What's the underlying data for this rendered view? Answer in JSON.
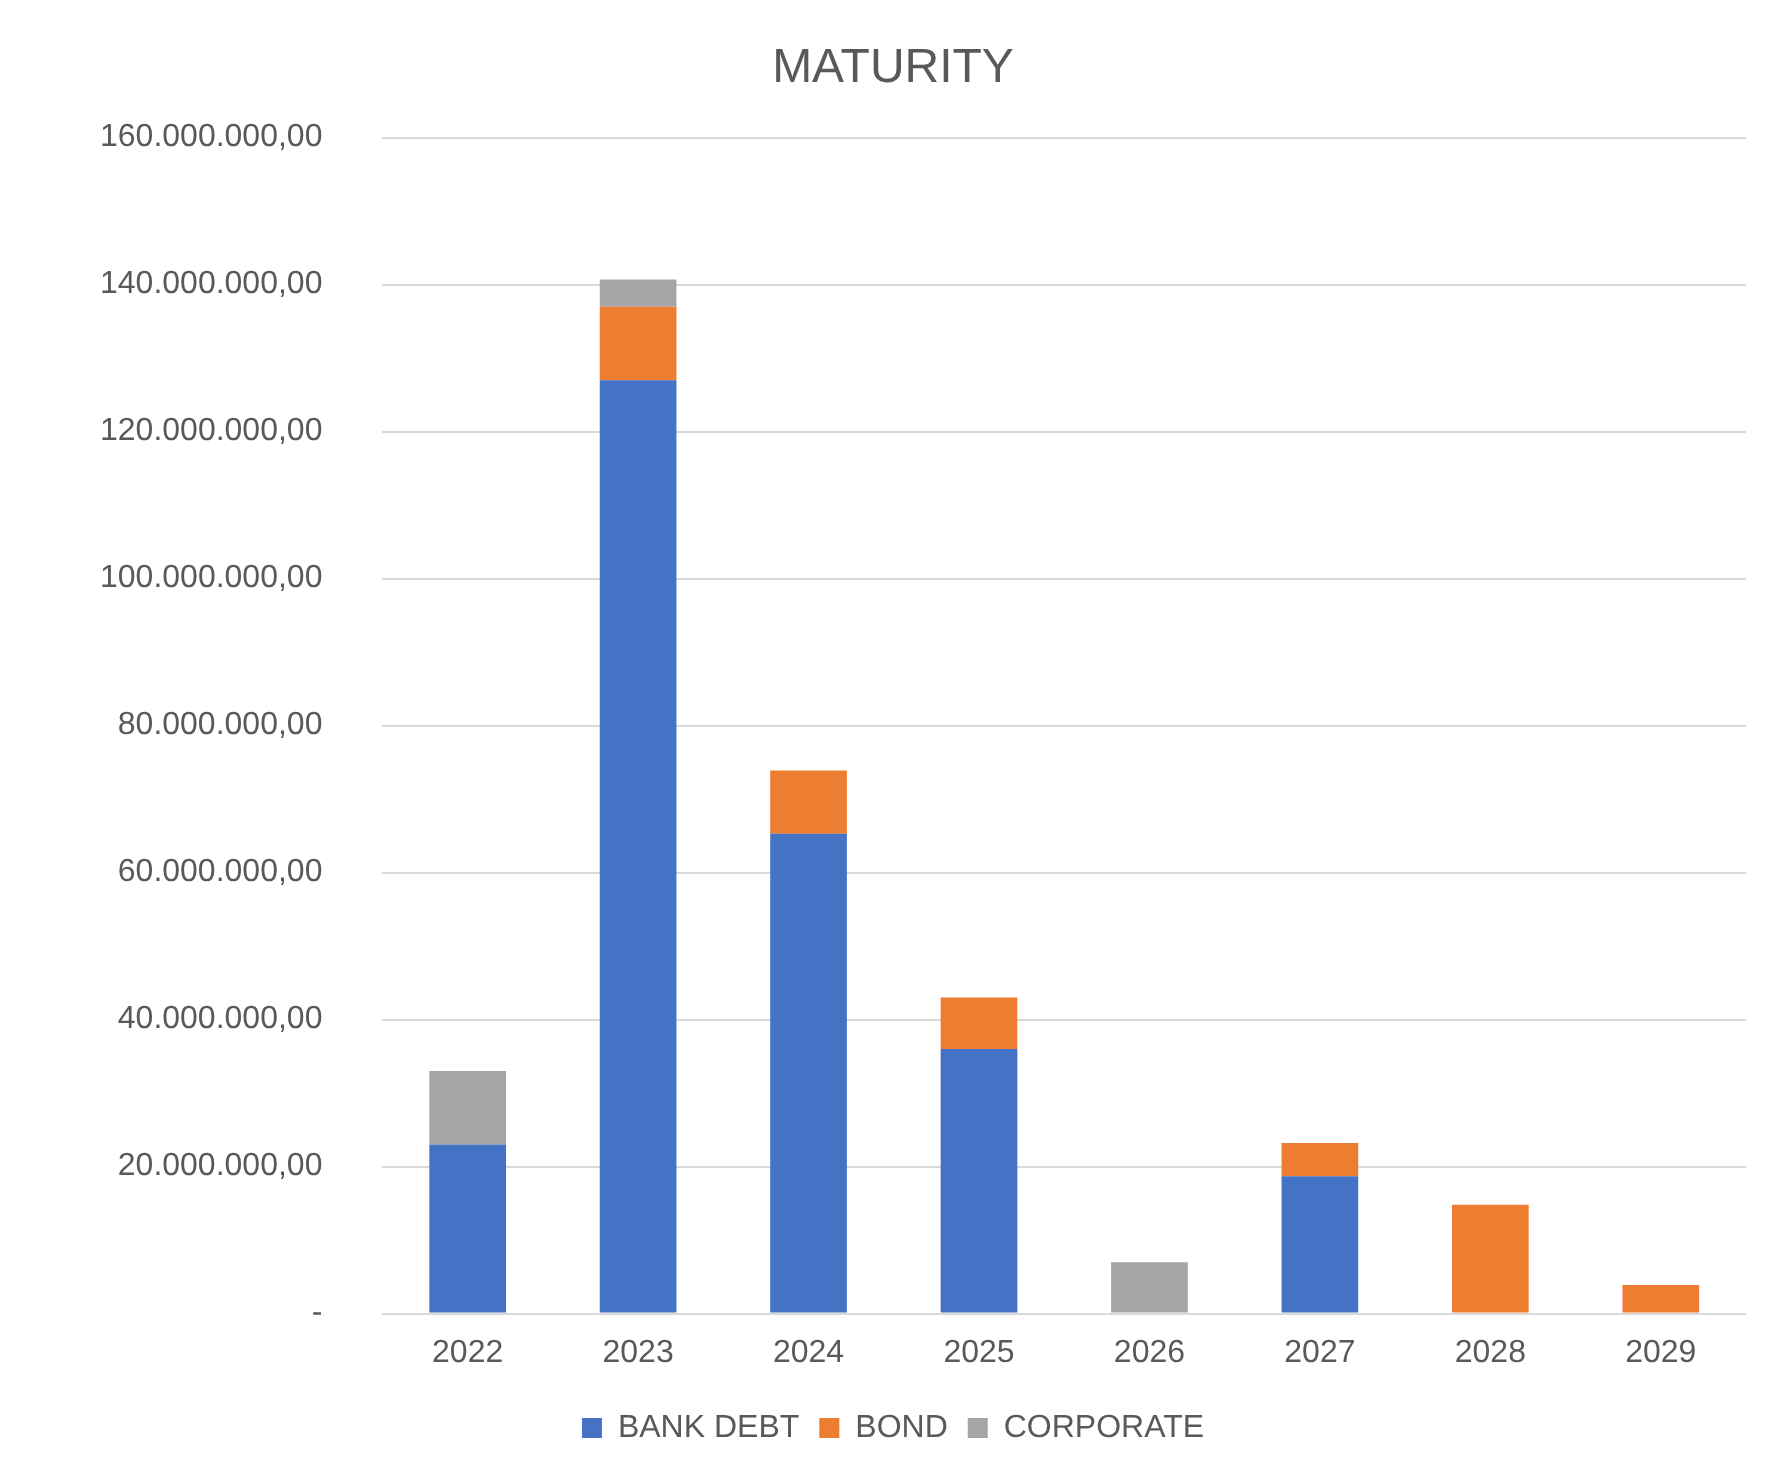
{
  "chart_data": {
    "type": "bar",
    "title": "MATURITY",
    "stacked": true,
    "categories": [
      "2022",
      "2023",
      "2024",
      "2025",
      "2026",
      "2027",
      "2028",
      "2029"
    ],
    "series": [
      {
        "name": "BANK DEBT",
        "color": "#4472c4",
        "values": [
          23000000,
          127000000,
          65300000,
          36000000,
          null,
          18700000,
          null,
          null
        ]
      },
      {
        "name": "BOND",
        "color": "#ed7d31",
        "values": [
          null,
          10000000,
          8600000,
          7000000,
          null,
          4500000,
          14800000,
          3900000
        ]
      },
      {
        "name": "CORPORATE",
        "color": "#a5a5a5",
        "values": [
          10000000,
          3700000,
          null,
          null,
          7000000,
          null,
          null,
          null
        ]
      }
    ],
    "ylim": [
      0,
      160000000
    ],
    "yticks": [
      {
        "value": 0,
        "label": "-"
      },
      {
        "value": 20000000,
        "label": "20.000.000,00"
      },
      {
        "value": 40000000,
        "label": "40.000.000,00"
      },
      {
        "value": 60000000,
        "label": "60.000.000,00"
      },
      {
        "value": 80000000,
        "label": "80.000.000,00"
      },
      {
        "value": 100000000,
        "label": "100.000.000,00"
      },
      {
        "value": 120000000,
        "label": "120.000.000,00"
      },
      {
        "value": 140000000,
        "label": "140.000.000,00"
      },
      {
        "value": 160000000,
        "label": "160.000.000,00"
      }
    ],
    "grid": "y",
    "legend": "bottom"
  }
}
